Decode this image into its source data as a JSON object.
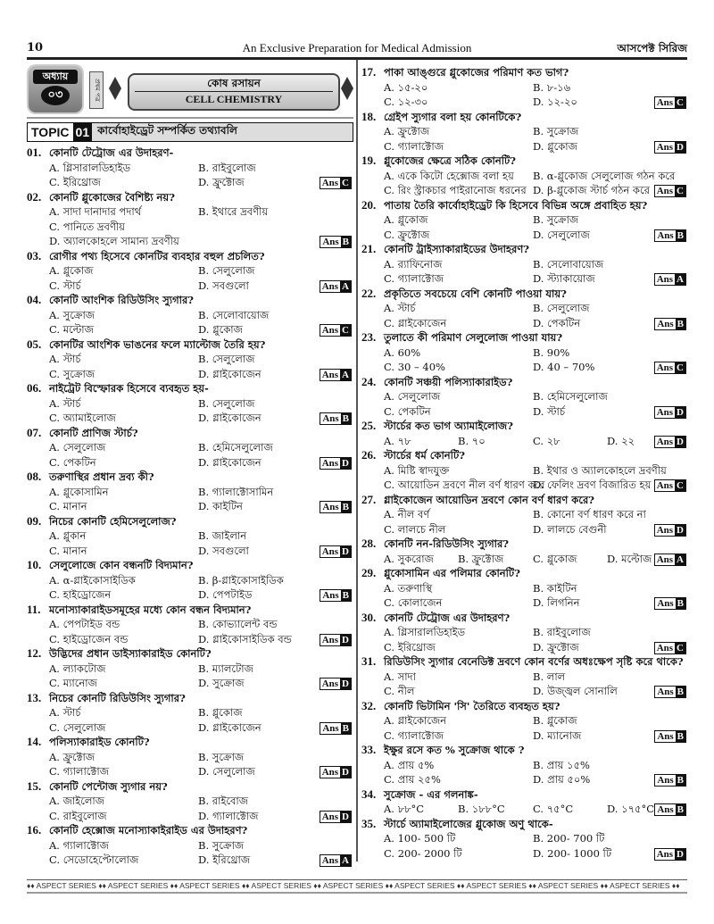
{
  "header": {
    "page_number": "10",
    "center": "An Exclusive  Preparation for Medical Admission",
    "right": "আসপেক্ট সিরিজ"
  },
  "banner": {
    "chapter_label": "অধ্যায়",
    "chapter_number": "০৩",
    "paper": "প্রথম পত্র",
    "title_bn": "কোষ রসায়ন",
    "title_en": "CELL CHEMISTRY"
  },
  "topic": {
    "label": "TOPIC",
    "number": "01",
    "title": "কার্বোহাইড্রেট সম্পর্কিত তথ্যাবলি"
  },
  "ans_label": "Ans",
  "footer": "♦♦ ASPECT SERIES ♦♦ ASPECT SERIES ♦♦ ASPECT SERIES ♦♦ ASPECT SERIES ♦♦ ASPECT SERIES ♦♦ ASPECT SERIES ♦♦ ASPECT SERIES ♦♦ ASPECT SERIES ♦♦ ASPECT SERIES ♦♦",
  "left_questions": [
    {
      "no": "01.",
      "q": "কোনটি টেট্রোজ এর উদাহরণ-",
      "opts": [
        "A. গ্লিসারালডিহাইড",
        "B. রাইবুলোজ",
        "C. ইরিথ্রোজ",
        "D. ফ্রুক্টোজ"
      ],
      "ans": "C"
    },
    {
      "no": "02.",
      "q": "কোনটি গ্লুকোজের বৈশিষ্ট্য নয়?",
      "opts": [
        "A. সাদা দানাদার পদার্থ",
        "B. ইথারে দ্রবণীয়",
        "C. পানিতে দ্রবণীয়",
        "D. অ্যালকোহলে সামান্য দ্রবণীয়"
      ],
      "ans": "B"
    },
    {
      "no": "03.",
      "q": "রোগীর পথ্য হিসেবে কোনটির ব্যবহার বহুল প্রচলিত?",
      "opts": [
        "A. গ্লুকোজ",
        "B. সেলুলোজ",
        "C. স্টার্চ",
        "D. সবগুলো"
      ],
      "ans": "A"
    },
    {
      "no": "04.",
      "q": "কোনটি আংশিক রিডিউসিং স্যুগার?",
      "opts": [
        "A. সুক্রোজ",
        "B. সেলোবায়োজ",
        "C. মল্টোজ",
        "D. গ্লুকোজ"
      ],
      "ans": "C"
    },
    {
      "no": "05.",
      "q": "কোনটির আংশিক ভাঙনের ফলে ম্যাল্টোজ তৈরি হয়?",
      "opts": [
        "A. স্টার্চ",
        "B. সেলুলোজ",
        "C. সুক্রোজ",
        "D. গ্লাইকোজেন"
      ],
      "ans": "A"
    },
    {
      "no": "06.",
      "q": "নাইট্রেট বিস্ফোরক হিসেবে ব্যবহৃত হয়-",
      "opts": [
        "A. স্টার্চ",
        "B. সেলুলোজ",
        "C. অ্যামাইলোজ",
        "D. গ্লাইকোজেন"
      ],
      "ans": "B"
    },
    {
      "no": "07.",
      "q": "কোনটি প্রাণিজ স্টার্চ?",
      "opts": [
        "A. সেলুলোজ",
        "B. হেমিসেলুলোজ",
        "C. পেকটিন",
        "D. গ্লাইকোজেন"
      ],
      "ans": "D"
    },
    {
      "no": "08.",
      "q": "তরুণাস্থির প্রধান দ্রব্য কী?",
      "opts": [
        "A. গ্লুকোসামিন",
        "B. গ্যালাক্টোসামিন",
        "C. মানান",
        "D. কাইটিন"
      ],
      "ans": "B"
    },
    {
      "no": "09.",
      "q": "নিচের কোনটি হেমিসেলুলোজ?",
      "opts": [
        "A. গ্লুকান",
        "B. জাইলান",
        "C. মানান",
        "D. সবগুলো"
      ],
      "ans": "D"
    },
    {
      "no": "10.",
      "q": "সেলুলোজে কোন বন্ধনটি বিদ্যমান?",
      "opts": [
        "A. α-গ্লাইকোসাইডিক",
        "B. β-গ্লাইকোসাইডিক",
        "C. হাইড্রোজেন",
        "D. পেপটাইড"
      ],
      "ans": "B"
    },
    {
      "no": "11.",
      "q": "মনোস্যাকারাইডসমূহের মধ্যে কোন বন্ধন বিদ্যমান?",
      "opts": [
        "A. পেপটাইড বন্ড",
        "B. কোভ্যালেন্ট বন্ড",
        "C. হাইড্রোজেন বন্ড",
        "D. গ্লাইকোসাইডিক বন্ড"
      ],
      "ans": "D"
    },
    {
      "no": "12.",
      "q": "উদ্ভিদের প্রধান ডাইস্যাকারাইড কোনটি?",
      "opts": [
        "A. ল্যাকটোজ",
        "B. ম্যালটোজ",
        "C. ম্যানোজ",
        "D. সুক্রোজ"
      ],
      "ans": "D"
    },
    {
      "no": "13.",
      "q": "নিচের কোনটি রিডিউসিং স্যুগার?",
      "opts": [
        "A. স্টার্চ",
        "B. গ্লুকোজ",
        "C. সেলুলোজ",
        "D. গ্লাইকোজেন"
      ],
      "ans": "B"
    },
    {
      "no": "14.",
      "q": "পলিস্যাকারাইড কোনটি?",
      "opts": [
        "A. ফ্রুক্টোজ",
        "B. সুক্রোজ",
        "C. গ্যালাক্টোজ",
        "D. সেলুলোজ"
      ],
      "ans": "D"
    },
    {
      "no": "15.",
      "q": "কোনটি পেন্টোজ স্যুগার নয়?",
      "opts": [
        "A. জাইলোজ",
        "B. রাইবোজ",
        "C. রাইবুলোজ",
        "D. গ্যালাক্টোজ"
      ],
      "ans": "D"
    },
    {
      "no": "16.",
      "q": "কোনটি হেক্সোজ মনোস্যাকাইরাইড এর উদাহরণ?",
      "opts": [
        "A. গ্যালাক্টোজ",
        "B. সুক্রোজ",
        "C. সেডোহেপ্টোলোজ",
        "D. ইরিথ্রোজ"
      ],
      "ans": "A"
    }
  ],
  "right_questions": [
    {
      "no": "17.",
      "q": "পাকা আঙ্গুরে গ্লুকোজের পরিমাণ কত ভাগ?",
      "opts": [
        "A. ১৫-২০",
        "B. ৮-১৬",
        "C. ১২-৩০",
        "D. ১২-২০"
      ],
      "ans": "C"
    },
    {
      "no": "18.",
      "q": "গ্রেইপ স্যুগার বলা হয় কোনটিকে?",
      "opts": [
        "A. ফ্রুক্টোজ",
        "B. সুক্রোজ",
        "C. গ্যালাক্টোজ",
        "D. গ্লুকোজ"
      ],
      "ans": "D"
    },
    {
      "no": "19.",
      "q": "গ্লুকোজের ক্ষেত্রে সঠিক কোনটি?",
      "opts": [
        "A. একে কিটো হেক্সোজ বলা হয়",
        "B. α-গ্লুকোজ সেলুলোজ গঠন করে",
        "C. রিং স্ট্রাকচার পাইরানোজ ধরনের",
        "D. β-গ্লুকোজ স্টার্চ গঠন করে"
      ],
      "ans": "C"
    },
    {
      "no": "20.",
      "q": "পাতায় তৈরি কার্বোহাইড্রেট কি হিসেবে বিভিন্ন অঙ্গে প্রবাহিত হয়?",
      "opts": [
        "A. গ্লুকোজ",
        "B. সুক্রোজ",
        "C. ফ্রুক্টোজ",
        "D. সেলুলোজ"
      ],
      "ans": "B"
    },
    {
      "no": "21.",
      "q": "কোনটি ট্রাইস্যাকারাইডের উদাহরণ?",
      "opts": [
        "A. র‍্যাফিনোজ",
        "B. সেলোবায়োজ",
        "C. গ্যালাক্টোজ",
        "D. স্ট্যাকায়োজ"
      ],
      "ans": "A"
    },
    {
      "no": "22.",
      "q": "প্রকৃতিতে সবচেয়ে বেশি কোনটি পাওয়া যায়?",
      "opts": [
        "A. স্টার্চ",
        "B. সেলুলোজ",
        "C. গ্লাইকোজেন",
        "D. পেকটিন"
      ],
      "ans": "B"
    },
    {
      "no": "23.",
      "q": "তুলাতে কী পরিমাণ সেলুলোজ পাওয়া যায়?",
      "opts": [
        "A. 60%",
        "B. 90%",
        "C. 30 – 40%",
        "D. 40 – 70%"
      ],
      "ans": "C"
    },
    {
      "no": "24.",
      "q": "কোনটি সঞ্চয়ী পলিস্যাকারাইড?",
      "opts": [
        "A. সেলুলোজ",
        "B. হেমিসেলুলোজ",
        "C. পেকটিন",
        "D. স্টার্চ"
      ],
      "ans": "D"
    },
    {
      "no": "25.",
      "q": "স্টার্চের কত ভাগ অ্যামাইলোজ?",
      "opts": [
        "A. ৭৮",
        "B. ৭০",
        "C. ২৮",
        "D. ২২"
      ],
      "ans": "D",
      "inline": true
    },
    {
      "no": "26.",
      "q": "স্টার্চের ধর্ম কোনটি?",
      "opts": [
        "A. মিষ্টি স্বাদযুক্ত",
        "B. ইথার ও অ্যালকোহলে দ্রবণীয়",
        "C. আয়োডিন দ্রবণে নীল বর্ণ ধারণ করে",
        "D. ফেলিং দ্রবণ বিজারিত হয়"
      ],
      "ans": "C"
    },
    {
      "no": "27.",
      "q": "গ্লাইকোজেন আয়োডিন দ্রবণে কোন বর্ণ ধারণ করে?",
      "opts": [
        "A. নীল বর্ণ",
        "B. কোনো বর্ণ ধারণ করে না",
        "C. লালচে নীল",
        "D. লালচে বেগুনী"
      ],
      "ans": "D"
    },
    {
      "no": "28.",
      "q": "কোনটি নন-রিডিউসিং স্যুগার?",
      "opts": [
        "A. সুকরোজ",
        "B. ফ্রুক্টোজ",
        "C. গ্লুকোজ",
        "D. মল্টোজ"
      ],
      "ans": "A",
      "inline": true
    },
    {
      "no": "29.",
      "q": "গ্লুকোসামিন এর পলিমার কোনটি?",
      "opts": [
        "A. তরুণাস্থি",
        "B. কাইটিন",
        "C. কোলাজেন",
        "D. লিগনিন"
      ],
      "ans": "B"
    },
    {
      "no": "30.",
      "q": "কোনটি টেট্রোজ এর উদাহরণ?",
      "opts": [
        "A. গ্লিসারালডিহাইড",
        "B. রাইবুলোজ",
        "C. ইরিথ্রোজ",
        "D. ফ্রুক্টোজ"
      ],
      "ans": "C"
    },
    {
      "no": "31.",
      "q": "রিডিউসিং স্যুগার বেনেডিক্ট দ্রবণে কোন বর্ণের অধঃক্ষেপ সৃষ্টি করে থাকে?",
      "opts": [
        "A. সাদা",
        "B. লাল",
        "C. নীল",
        "D. উজ্জ্বল সোনালি"
      ],
      "ans": "B"
    },
    {
      "no": "32.",
      "q": "কোনটি ভিটামিন 'সি' তৈরিতে ব্যবহৃত হয়?",
      "opts": [
        "A. গ্লাইকোজেন",
        "B. গ্লুকোজ",
        "C. গ্যালাক্টোজ",
        "D. ম্যানোজ"
      ],
      "ans": "B"
    },
    {
      "no": "33.",
      "q": "ইক্ষুর রসে কত % সুক্রোজ থাকে ?",
      "opts": [
        "A. প্রায় ৫%",
        "B. প্রায় ১৫%",
        "C. প্রায় ২৫%",
        "D. প্রায় ৫০%"
      ],
      "ans": "B"
    },
    {
      "no": "34.",
      "q": "সুক্রোজ - এর গলনাঙ্ক-",
      "opts": [
        "A. ৮৮°C",
        "B. ১৮৮°C",
        "C. ৭৫°C",
        "D. ১৭৫°C"
      ],
      "ans": "B",
      "inline": true
    },
    {
      "no": "35.",
      "q": "স্টার্চে অ্যামাইলোজের গ্লুকোজ অণু থাকে-",
      "opts": [
        "A. 100- 500 টি",
        "B. 200- 700 টি",
        "C. 200- 2000 টি",
        "D. 200- 1000 টি"
      ],
      "ans": "D"
    }
  ]
}
